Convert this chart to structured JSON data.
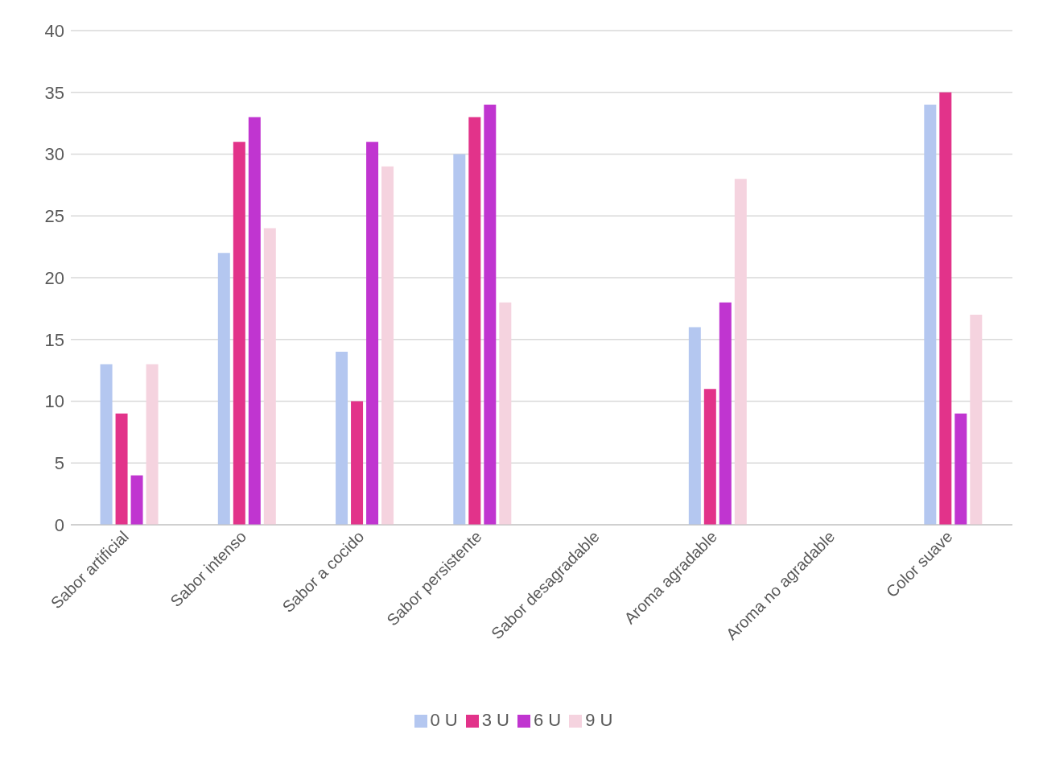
{
  "chart_data": {
    "type": "bar",
    "categories": [
      "Sabor artificial",
      "Sabor intenso",
      "Sabor a cocido",
      "Sabor persistente",
      "Sabor desagradable",
      "Aroma agradable",
      "Aroma no agradable",
      "Color suave"
    ],
    "series": [
      {
        "name": "0 U",
        "color": "#b4c7f0",
        "values": [
          13,
          22,
          14,
          30,
          0,
          16,
          0,
          34
        ]
      },
      {
        "name": "3 U",
        "color": "#e2338a",
        "values": [
          9,
          31,
          10,
          33,
          0,
          11,
          0,
          35
        ]
      },
      {
        "name": "6 U",
        "color": "#c035d0",
        "values": [
          4,
          33,
          31,
          34,
          0,
          18,
          0,
          9
        ]
      },
      {
        "name": "9 U",
        "color": "#f5d3df",
        "values": [
          13,
          24,
          29,
          18,
          0,
          28,
          0,
          17
        ]
      }
    ],
    "ylim": [
      0,
      40
    ],
    "yticks": [
      0,
      5,
      10,
      15,
      20,
      25,
      30,
      35,
      40
    ],
    "grid": "y",
    "legend": "bottom"
  }
}
